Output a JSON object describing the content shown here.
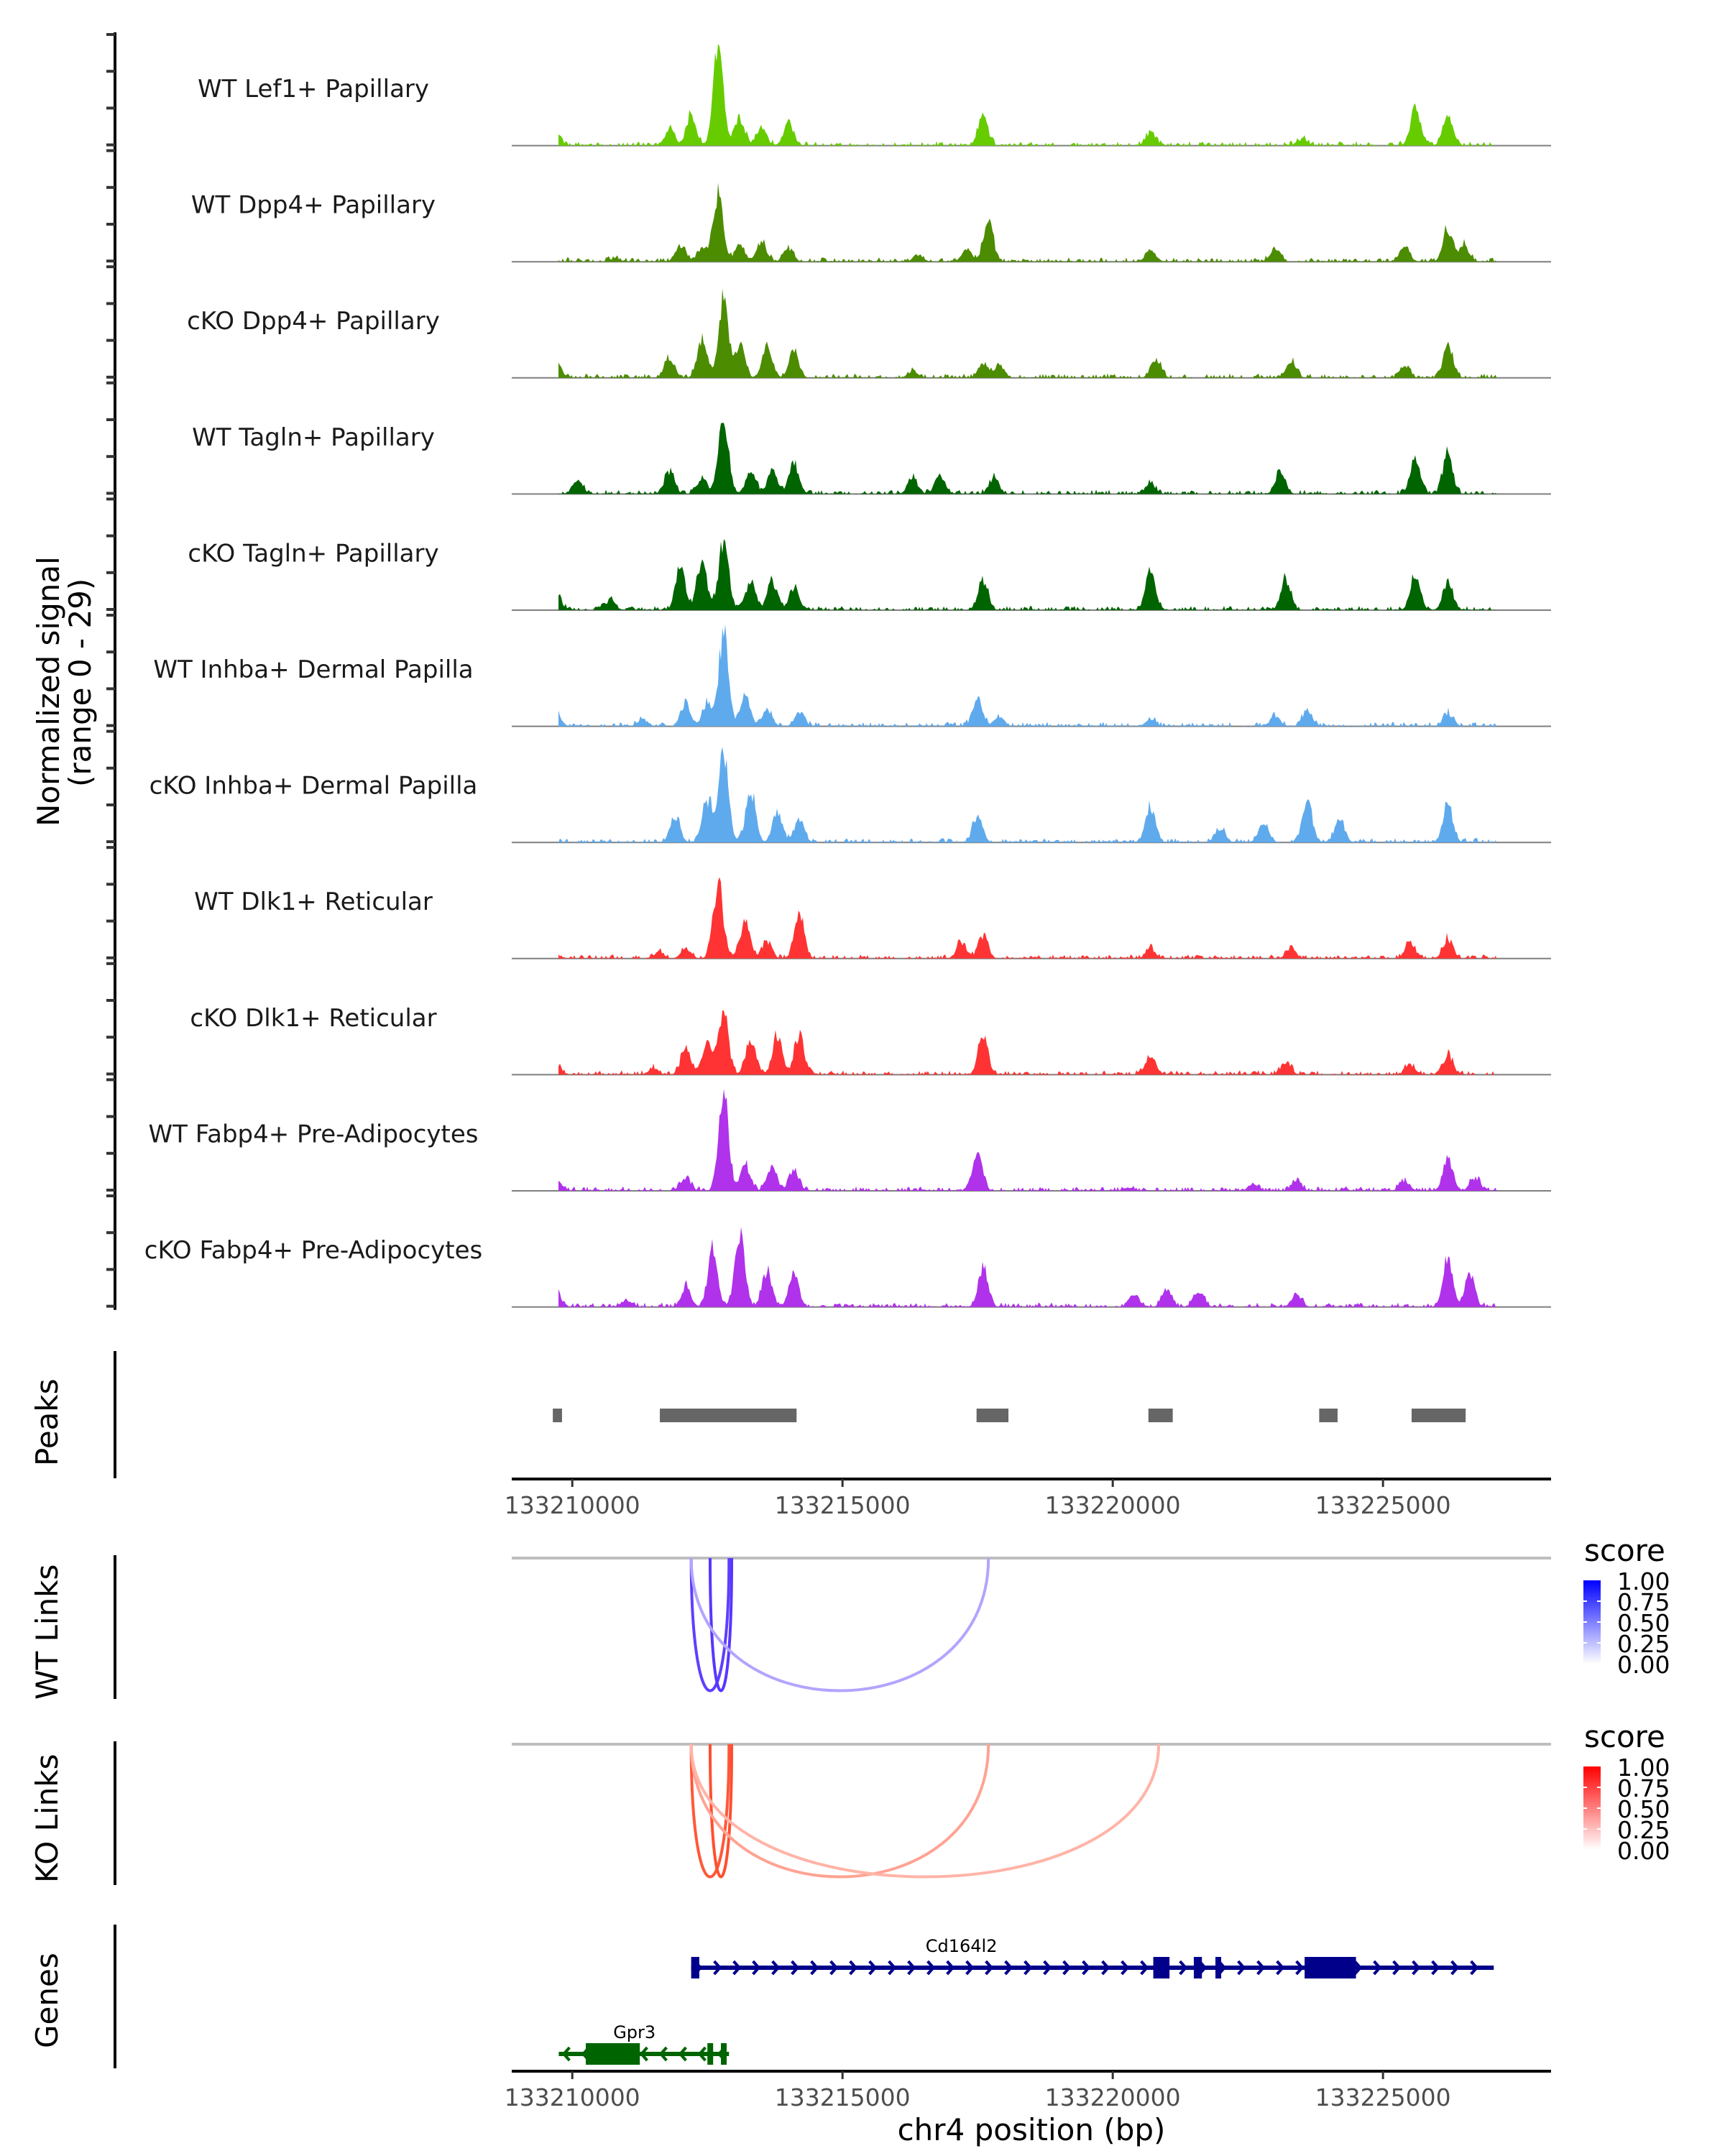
{
  "chart_data": {
    "type": "area",
    "title": "",
    "xlabel": "chr4 position (bp)",
    "ylabel": "Normalized signal\n(range 0 - 29)",
    "ylabel_lines": [
      "Normalized signal",
      "(range 0 - 29)"
    ],
    "x_range": [
      133208880,
      133228110
    ],
    "y_range": [
      0,
      29
    ],
    "x_ticks": [
      133210000,
      133215000,
      133220000,
      133225000
    ],
    "x_tick_labels": [
      "133210000",
      "133215000",
      "133220000",
      "133225000"
    ],
    "coverage_tracks": [
      {
        "name": "WT Lef1+ Papillary",
        "color": "#66CC00",
        "peaks": [
          [
            133209700,
            3
          ],
          [
            133211800,
            5
          ],
          [
            133212200,
            9
          ],
          [
            133212700,
            29
          ],
          [
            133213100,
            8
          ],
          [
            133213500,
            6
          ],
          [
            133214000,
            7
          ],
          [
            133217600,
            9
          ],
          [
            133220700,
            4
          ],
          [
            133223500,
            2
          ],
          [
            133225600,
            11
          ],
          [
            133226200,
            9
          ]
        ]
      },
      {
        "name": "WT Dpp4+ Papillary",
        "color": "#4C8C00",
        "peaks": [
          [
            133210800,
            1
          ],
          [
            133212000,
            5
          ],
          [
            133212400,
            4
          ],
          [
            133212700,
            21
          ],
          [
            133213100,
            5
          ],
          [
            133213500,
            6
          ],
          [
            133214000,
            4
          ],
          [
            133216400,
            2
          ],
          [
            133217300,
            4
          ],
          [
            133217700,
            12
          ],
          [
            133220700,
            4
          ],
          [
            133223000,
            4
          ],
          [
            133225400,
            5
          ],
          [
            133226200,
            10
          ],
          [
            133226500,
            5
          ]
        ]
      },
      {
        "name": "cKO Dpp4+ Papillary",
        "color": "#4C8C00",
        "peaks": [
          [
            133209700,
            5
          ],
          [
            133211800,
            6
          ],
          [
            133212400,
            11
          ],
          [
            133212800,
            24
          ],
          [
            133213100,
            9
          ],
          [
            133213600,
            10
          ],
          [
            133214100,
            8
          ],
          [
            133216300,
            2
          ],
          [
            133217600,
            4
          ],
          [
            133217900,
            4
          ],
          [
            133220800,
            6
          ],
          [
            133223300,
            5
          ],
          [
            133225400,
            4
          ],
          [
            133226200,
            10
          ]
        ]
      },
      {
        "name": "WT Tagln+ Papillary",
        "color": "#006400",
        "peaks": [
          [
            133210100,
            4
          ],
          [
            133211800,
            7
          ],
          [
            133212400,
            5
          ],
          [
            133212800,
            23
          ],
          [
            133213300,
            7
          ],
          [
            133213700,
            7
          ],
          [
            133214100,
            9
          ],
          [
            133216300,
            5
          ],
          [
            133216800,
            6
          ],
          [
            133217800,
            5
          ],
          [
            133220700,
            3
          ],
          [
            133223100,
            7
          ],
          [
            133225600,
            11
          ],
          [
            133226200,
            12
          ]
        ]
      },
      {
        "name": "cKO Tagln+ Papillary",
        "color": "#006400",
        "peaks": [
          [
            133209700,
            5
          ],
          [
            133210700,
            3
          ],
          [
            133212000,
            13
          ],
          [
            133212400,
            15
          ],
          [
            133212800,
            22
          ],
          [
            133213300,
            9
          ],
          [
            133213700,
            9
          ],
          [
            133214100,
            7
          ],
          [
            133217600,
            9
          ],
          [
            133220700,
            12
          ],
          [
            133223200,
            9
          ],
          [
            133225600,
            10
          ],
          [
            133226200,
            9
          ]
        ]
      },
      {
        "name": "WT Inhba+ Dermal Papilla",
        "color": "#5FAAED",
        "peaks": [
          [
            133209700,
            4
          ],
          [
            133211300,
            2
          ],
          [
            133212100,
            7
          ],
          [
            133212500,
            7
          ],
          [
            133212800,
            29
          ],
          [
            133213200,
            9
          ],
          [
            133213600,
            5
          ],
          [
            133214200,
            4
          ],
          [
            133217500,
            9
          ],
          [
            133217900,
            3
          ],
          [
            133220700,
            2
          ],
          [
            133223000,
            3
          ],
          [
            133223600,
            5
          ],
          [
            133226200,
            4
          ]
        ]
      },
      {
        "name": "cKO Inhba+ Dermal Papilla",
        "color": "#5FAAED",
        "peaks": [
          [
            133211900,
            8
          ],
          [
            133212500,
            13
          ],
          [
            133212800,
            27
          ],
          [
            133213300,
            16
          ],
          [
            133213800,
            9
          ],
          [
            133214200,
            7
          ],
          [
            133217500,
            8
          ],
          [
            133220700,
            11
          ],
          [
            133222000,
            4
          ],
          [
            133222800,
            6
          ],
          [
            133223600,
            13
          ],
          [
            133224200,
            7
          ],
          [
            133226200,
            11
          ]
        ]
      },
      {
        "name": "WT Dlk1+ Reticular",
        "color": "#FF3333",
        "peaks": [
          [
            133209700,
            1
          ],
          [
            133211600,
            2
          ],
          [
            133212100,
            3
          ],
          [
            133212700,
            24
          ],
          [
            133213200,
            11
          ],
          [
            133213600,
            5
          ],
          [
            133214200,
            14
          ],
          [
            133217200,
            5
          ],
          [
            133217600,
            7
          ],
          [
            133220700,
            3
          ],
          [
            133223300,
            3
          ],
          [
            133225500,
            5
          ],
          [
            133226200,
            6
          ]
        ]
      },
      {
        "name": "cKO Dlk1+ Reticular",
        "color": "#FF3333",
        "peaks": [
          [
            133209700,
            3
          ],
          [
            133211500,
            2
          ],
          [
            133212100,
            8
          ],
          [
            133212500,
            10
          ],
          [
            133212800,
            19
          ],
          [
            133213300,
            11
          ],
          [
            133213800,
            12
          ],
          [
            133214200,
            12
          ],
          [
            133217600,
            12
          ],
          [
            133220700,
            6
          ],
          [
            133223200,
            4
          ],
          [
            133225500,
            3
          ],
          [
            133226200,
            6
          ]
        ]
      },
      {
        "name": "WT Fabp4+ Pre-Adipocytes",
        "color": "#B032EB",
        "peaks": [
          [
            133209700,
            3
          ],
          [
            133212100,
            4
          ],
          [
            133212800,
            29
          ],
          [
            133213200,
            8
          ],
          [
            133213700,
            7
          ],
          [
            133214100,
            6
          ],
          [
            133217500,
            11
          ],
          [
            133220300,
            1
          ],
          [
            133222600,
            2
          ],
          [
            133223400,
            3
          ],
          [
            133225400,
            3
          ],
          [
            133226200,
            10
          ],
          [
            133226700,
            4
          ]
        ]
      },
      {
        "name": "cKO Fabp4+ Pre-Adipocytes",
        "color": "#B032EB",
        "peaks": [
          [
            133209700,
            5
          ],
          [
            133211000,
            2
          ],
          [
            133212100,
            6
          ],
          [
            133212600,
            17
          ],
          [
            133213100,
            22
          ],
          [
            133213600,
            11
          ],
          [
            133214100,
            10
          ],
          [
            133217600,
            12
          ],
          [
            133220400,
            4
          ],
          [
            133221000,
            5
          ],
          [
            133221600,
            5
          ],
          [
            133223400,
            4
          ],
          [
            133226200,
            14
          ],
          [
            133226600,
            10
          ]
        ]
      }
    ],
    "peaks_track": {
      "title": "Peaks",
      "color": "#666666",
      "regions": [
        [
          133209640,
          133209810
        ],
        [
          133211620,
          133214150
        ],
        [
          133217480,
          133218070
        ],
        [
          133220660,
          133221110
        ],
        [
          133223820,
          133224160
        ],
        [
          133225530,
          133226530
        ]
      ]
    },
    "link_tracks": [
      {
        "title": "WT Links",
        "legend_title": "score",
        "color_low": "#FFFFFF",
        "color_high": "#0000FF",
        "links": [
          {
            "start": 133212200,
            "end": 133212900,
            "score": 0.8
          },
          {
            "start": 133212550,
            "end": 133212950,
            "score": 0.85
          },
          {
            "start": 133212200,
            "end": 133217700,
            "score": 0.25
          }
        ]
      },
      {
        "title": "KO Links",
        "legend_title": "score",
        "color_low": "#FFFFFF",
        "color_high": "#FF0000",
        "links": [
          {
            "start": 133212200,
            "end": 133212900,
            "score": 0.75
          },
          {
            "start": 133212550,
            "end": 133212950,
            "score": 0.8
          },
          {
            "start": 133212200,
            "end": 133217700,
            "score": 0.3
          },
          {
            "start": 133212200,
            "end": 133220850,
            "score": 0.2
          }
        ]
      }
    ],
    "legend_ticks": [
      "1.00",
      "0.75",
      "0.50",
      "0.25",
      "0.00"
    ],
    "genes_track": {
      "title": "Genes",
      "genes": [
        {
          "name": "Cd164l2",
          "strand": "+",
          "color": "#00008B",
          "start": 133212200,
          "end": 133227050,
          "exons": [
            [
              133212200,
              133212350
            ],
            [
              133220750,
              133221050
            ],
            [
              133221500,
              133221650
            ],
            [
              133221900,
              133221950
            ],
            [
              133223550,
              133224500
            ]
          ]
        },
        {
          "name": "Gpr3",
          "strand": "-",
          "color": "#006400",
          "start": 133209750,
          "end": 133212900,
          "exons": [
            [
              133210250,
              133211250
            ],
            [
              133212500,
              133212600
            ],
            [
              133212750,
              133212850
            ]
          ]
        }
      ]
    }
  }
}
